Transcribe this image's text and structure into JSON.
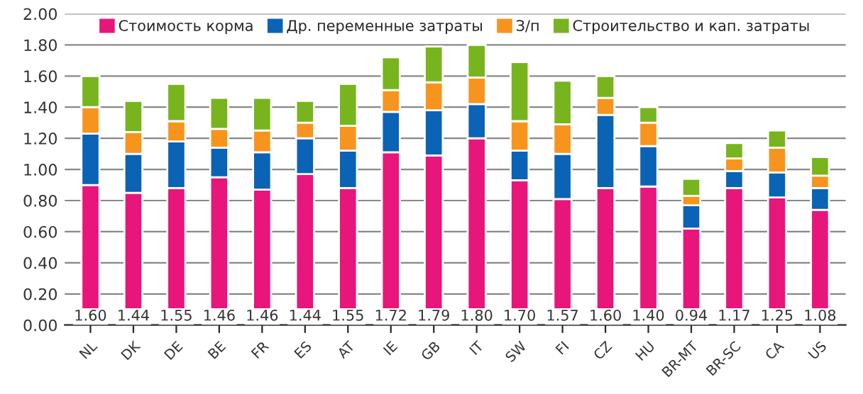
{
  "chart_data": {
    "type": "bar",
    "stacked": true,
    "categories": [
      "NL",
      "DK",
      "DE",
      "BE",
      "FR",
      "ES",
      "AT",
      "IE",
      "GB",
      "IT",
      "SW",
      "FI",
      "CZ",
      "HU",
      "BR-MT",
      "BR-SC",
      "CA",
      "US"
    ],
    "series": [
      {
        "name": "Стоимость корма",
        "color": "#e8157a",
        "values": [
          0.9,
          0.85,
          0.88,
          0.95,
          0.87,
          0.97,
          0.88,
          1.11,
          1.09,
          1.2,
          0.93,
          0.81,
          0.88,
          0.89,
          0.62,
          0.88,
          0.82,
          0.74
        ]
      },
      {
        "name": "Др. переменные затраты",
        "color": "#0a63b4",
        "values": [
          0.33,
          0.25,
          0.3,
          0.19,
          0.24,
          0.23,
          0.24,
          0.26,
          0.29,
          0.22,
          0.19,
          0.29,
          0.47,
          0.26,
          0.15,
          0.11,
          0.16,
          0.14
        ]
      },
      {
        "name": "З/п",
        "color": "#f7941d",
        "values": [
          0.17,
          0.14,
          0.13,
          0.12,
          0.14,
          0.1,
          0.16,
          0.14,
          0.18,
          0.17,
          0.19,
          0.19,
          0.11,
          0.15,
          0.06,
          0.08,
          0.16,
          0.08
        ]
      },
      {
        "name": "Строительство и кап. затраты",
        "color": "#78b41e",
        "values": [
          0.2,
          0.2,
          0.24,
          0.2,
          0.21,
          0.14,
          0.27,
          0.21,
          0.23,
          0.21,
          0.38,
          0.28,
          0.14,
          0.1,
          0.11,
          0.1,
          0.11,
          0.12
        ]
      }
    ],
    "totals": [
      "1.60",
      "1.44",
      "1.55",
      "1.46",
      "1.46",
      "1.44",
      "1.55",
      "1.72",
      "1.79",
      "1.80",
      "1.70",
      "1.57",
      "1.60",
      "1.40",
      "0.94",
      "1.17",
      "1.25",
      "1.08"
    ],
    "ylim": [
      0,
      2
    ],
    "yticks": [
      {
        "value": 0,
        "label": "0.00"
      },
      {
        "value": 0.2,
        "label": "0.20"
      },
      {
        "value": 0.4,
        "label": "0.40"
      },
      {
        "value": 0.6,
        "label": "0.60"
      },
      {
        "value": 0.8,
        "label": "0.80"
      },
      {
        "value": 1,
        "label": "1.00"
      },
      {
        "value": 1.2,
        "label": "1.20"
      },
      {
        "value": 1.4,
        "label": "1.40"
      },
      {
        "value": 1.6,
        "label": "1.60"
      },
      {
        "value": 1.8,
        "label": "1.80"
      },
      {
        "value": 2,
        "label": "2.00"
      }
    ],
    "grid": "y",
    "legend": "top"
  }
}
